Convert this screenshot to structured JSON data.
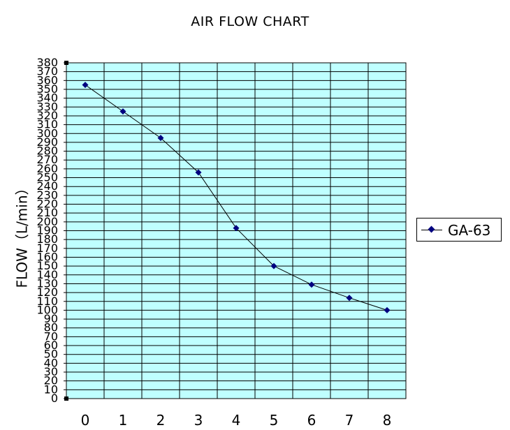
{
  "chart_data": {
    "type": "line",
    "title": "AIR FLOW CHART",
    "ylabel": "FLOW（L/min）",
    "xlabel": "",
    "x": [
      0,
      1,
      2,
      3,
      4,
      5,
      6,
      7,
      8
    ],
    "series": [
      {
        "name": "GA-63",
        "values": [
          355,
          325,
          295,
          256,
          193,
          150,
          129,
          114,
          100
        ]
      }
    ],
    "ylim": [
      0,
      380
    ],
    "y_ticks": [
      0,
      10,
      20,
      30,
      40,
      50,
      60,
      70,
      80,
      90,
      100,
      110,
      120,
      130,
      140,
      150,
      160,
      170,
      180,
      190,
      200,
      210,
      220,
      230,
      240,
      250,
      260,
      270,
      280,
      290,
      300,
      310,
      320,
      330,
      340,
      350,
      360,
      370,
      380
    ],
    "x_ticks": [
      0,
      1,
      2,
      3,
      4,
      5,
      6,
      7,
      8
    ],
    "grid": true,
    "legend": "right",
    "colors": {
      "plot_bg": "#bfffff",
      "grid": "#000000",
      "line": "#000000",
      "marker": "#000080"
    }
  }
}
